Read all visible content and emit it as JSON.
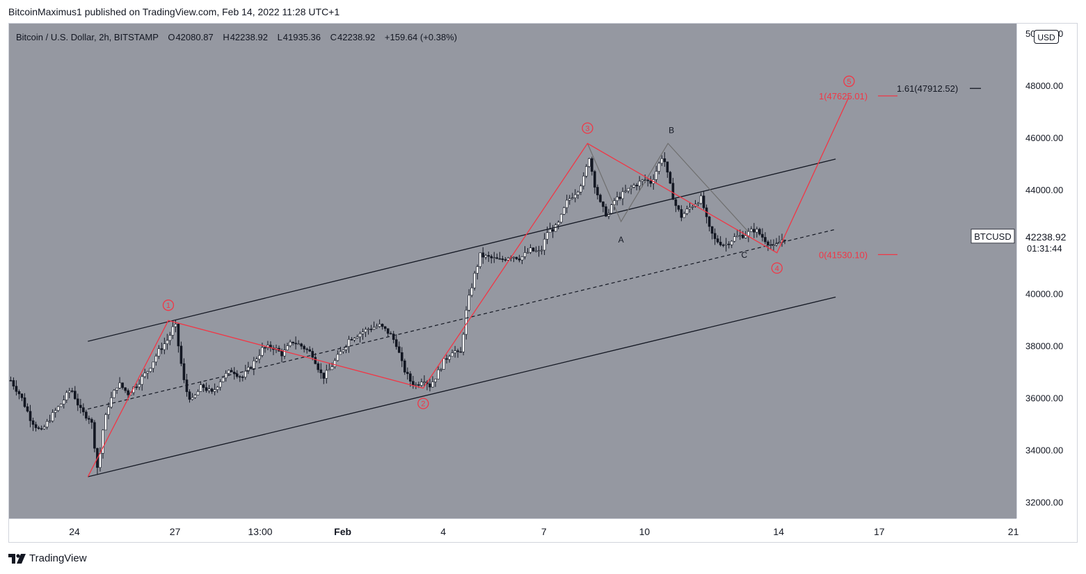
{
  "header": {
    "publish_line": "BitcoinMaximus1 published on TradingView.com, Feb 14, 2022 11:28 UTC+1"
  },
  "legend": {
    "symbol": "Bitcoin / U.S. Dollar, 2h, BITSTAMP",
    "open_label": "O",
    "open": "42080.87",
    "high_label": "H",
    "high": "42238.92",
    "low_label": "L",
    "low": "41935.36",
    "close_label": "C",
    "close": "42238.92",
    "change": "+159.64 (+0.38%)"
  },
  "price_scale": {
    "currency": "USD",
    "current_price": "42238.92",
    "countdown": "01:31:44",
    "symbol_tag": "BTCUSD",
    "colors": {
      "current_bg": "#ffffff",
      "wave": "#f23645",
      "channel": "#131722",
      "plot_bg": "#9598a1"
    }
  },
  "footer": {
    "brand": "TradingView"
  },
  "chart_data": {
    "type": "candlestick",
    "ylim": [
      31400,
      50400
    ],
    "y_ticks": [
      32000,
      34000,
      36000,
      38000,
      40000,
      42000,
      44000,
      46000,
      48000,
      50000
    ],
    "y_tick_labels": [
      "32000.00",
      "34000.00",
      "36000.00",
      "38000.00",
      "40000.00",
      "",
      "44000.00",
      "46000.00",
      "48000.00",
      "50000.00"
    ],
    "x_ticks": [
      {
        "label": "24",
        "day": 0
      },
      {
        "label": "27",
        "day": 3
      },
      {
        "label": "13:00",
        "day": 5.54
      },
      {
        "label": "Feb",
        "day": 8
      },
      {
        "label": "4",
        "day": 11
      },
      {
        "label": "7",
        "day": 14
      },
      {
        "label": "10",
        "day": 17
      },
      {
        "label": "14",
        "day": 21
      },
      {
        "label": "17",
        "day": 24
      },
      {
        "label": "21",
        "day": 28
      }
    ],
    "x_axis_unit": "days since Jan 24, 2022",
    "price_path": [
      [
        -1.9,
        36700
      ],
      [
        -1.6,
        36100
      ],
      [
        -1.3,
        35200
      ],
      [
        -1.0,
        34700
      ],
      [
        -0.7,
        35300
      ],
      [
        -0.4,
        35800
      ],
      [
        -0.1,
        36400
      ],
      [
        0.2,
        35500
      ],
      [
        0.5,
        35200
      ],
      [
        0.7,
        33200
      ],
      [
        0.85,
        34800
      ],
      [
        1.0,
        35700
      ],
      [
        1.3,
        36600
      ],
      [
        1.6,
        36200
      ],
      [
        1.9,
        36600
      ],
      [
        2.2,
        37100
      ],
      [
        2.5,
        37800
      ],
      [
        2.8,
        38300
      ],
      [
        3.0,
        38900
      ],
      [
        3.15,
        37600
      ],
      [
        3.3,
        36400
      ],
      [
        3.5,
        35900
      ],
      [
        3.8,
        36500
      ],
      [
        4.1,
        36200
      ],
      [
        4.4,
        36800
      ],
      [
        4.7,
        37100
      ],
      [
        5.0,
        36800
      ],
      [
        5.3,
        37300
      ],
      [
        5.6,
        37900
      ],
      [
        5.9,
        38000
      ],
      [
        6.2,
        37700
      ],
      [
        6.5,
        38200
      ],
      [
        6.8,
        38000
      ],
      [
        7.1,
        37700
      ],
      [
        7.4,
        36800
      ],
      [
        7.6,
        37100
      ],
      [
        7.9,
        37700
      ],
      [
        8.2,
        38300
      ],
      [
        8.5,
        38500
      ],
      [
        8.8,
        38700
      ],
      [
        9.1,
        38800
      ],
      [
        9.4,
        38500
      ],
      [
        9.6,
        38100
      ],
      [
        9.8,
        37200
      ],
      [
        10.0,
        36700
      ],
      [
        10.2,
        36500
      ],
      [
        10.4,
        36800
      ],
      [
        10.6,
        36500
      ],
      [
        10.8,
        36900
      ],
      [
        11.0,
        37400
      ],
      [
        11.3,
        37900
      ],
      [
        11.5,
        37600
      ],
      [
        11.7,
        39500
      ],
      [
        11.9,
        40600
      ],
      [
        12.1,
        41500
      ],
      [
        12.4,
        41400
      ],
      [
        12.7,
        41300
      ],
      [
        13.0,
        41500
      ],
      [
        13.3,
        41400
      ],
      [
        13.6,
        41700
      ],
      [
        13.9,
        41600
      ],
      [
        14.1,
        42400
      ],
      [
        14.4,
        42600
      ],
      [
        14.7,
        43600
      ],
      [
        15.0,
        44000
      ],
      [
        15.2,
        44500
      ],
      [
        15.35,
        45300
      ],
      [
        15.5,
        44300
      ],
      [
        15.7,
        43400
      ],
      [
        15.9,
        43000
      ],
      [
        16.1,
        43600
      ],
      [
        16.4,
        43900
      ],
      [
        16.7,
        44200
      ],
      [
        17.0,
        44400
      ],
      [
        17.2,
        44300
      ],
      [
        17.4,
        44900
      ],
      [
        17.55,
        45400
      ],
      [
        17.7,
        44500
      ],
      [
        17.9,
        43500
      ],
      [
        18.1,
        43000
      ],
      [
        18.4,
        43400
      ],
      [
        18.7,
        43700
      ],
      [
        18.9,
        42600
      ],
      [
        19.1,
        42100
      ],
      [
        19.4,
        41900
      ],
      [
        19.7,
        42200
      ],
      [
        20.0,
        42300
      ],
      [
        20.3,
        42500
      ],
      [
        20.6,
        42100
      ],
      [
        20.85,
        41800
      ],
      [
        21.1,
        42100
      ],
      [
        21.25,
        42240
      ]
    ],
    "channel": {
      "upper": [
        [
          0.4,
          38200
        ],
        [
          22.7,
          45200
        ]
      ],
      "lower": [
        [
          0.4,
          33000
        ],
        [
          22.7,
          39900
        ]
      ],
      "middle": [
        [
          0.4,
          35600
        ],
        [
          22.7,
          42500
        ]
      ]
    },
    "wave_count": {
      "color": "#f23645",
      "points": [
        [
          0.4,
          33000
        ],
        [
          2.8,
          39000
        ],
        [
          10.4,
          36400
        ],
        [
          15.3,
          45800
        ],
        [
          20.95,
          41600
        ],
        [
          23.1,
          47600
        ]
      ],
      "labels": [
        "1",
        "2",
        "3",
        "4",
        "5"
      ]
    },
    "correction_abc": {
      "color": "#6f6f6f",
      "points": [
        [
          15.3,
          45800
        ],
        [
          16.3,
          42800
        ],
        [
          17.7,
          45800
        ],
        [
          20.1,
          42400
        ]
      ],
      "labels": [
        "A",
        "B",
        "C"
      ]
    },
    "fib_levels": [
      {
        "label": "1(47625.01)",
        "value": 47625.01,
        "color": "#f23645"
      },
      {
        "label": "0(41530.10)",
        "value": 41530.1,
        "color": "#f23645"
      },
      {
        "label": "1.61(47912.52)",
        "value": 47912.52,
        "color": "#131722"
      }
    ]
  }
}
